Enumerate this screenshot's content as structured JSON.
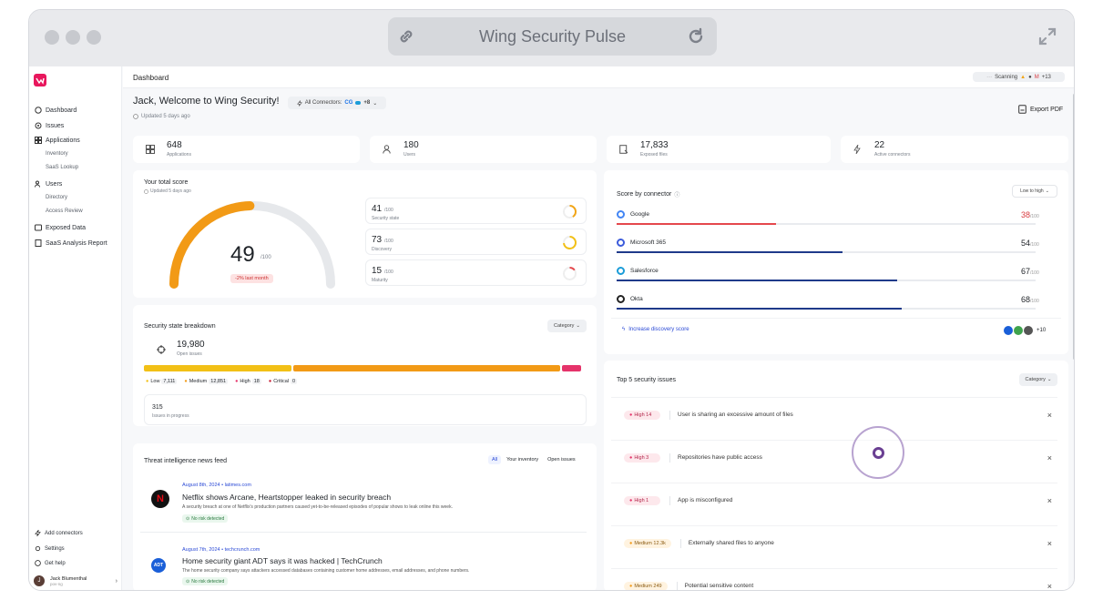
{
  "window": {
    "title": "Wing Security Pulse"
  },
  "sidebar": {
    "items": [
      {
        "label": "Dashboard",
        "icon": "home-icon"
      },
      {
        "label": "Issues",
        "icon": "issues-icon"
      },
      {
        "label": "Applications",
        "icon": "grid-icon"
      },
      {
        "label": "Inventory"
      },
      {
        "label": "SaaS Lookup"
      },
      {
        "label": "Users",
        "icon": "users-icon"
      },
      {
        "label": "Directory"
      },
      {
        "label": "Access Review"
      },
      {
        "label": "Exposed Data",
        "icon": "database-icon"
      },
      {
        "label": "SaaS Analysis Report",
        "icon": "report-icon"
      }
    ],
    "bottom": [
      "Add connectors",
      "Settings",
      "Get help"
    ],
    "user": {
      "initial": "J",
      "name": "Jack Blumenthal",
      "org": "pov-ng"
    }
  },
  "header": {
    "title": "Dashboard",
    "scanning": "Scanning",
    "scan_more": "+13"
  },
  "welcome": {
    "title": "Jack, Welcome to Wing Security!",
    "connectors_label": "All Connectors:",
    "connectors_more": "+8",
    "updated": "Updated 5 days ago",
    "export": "Export PDF"
  },
  "stats": [
    {
      "value": "648",
      "label": "Applications"
    },
    {
      "value": "180",
      "label": "Users"
    },
    {
      "value": "17,833",
      "label": "Exposed files"
    },
    {
      "value": "22",
      "label": "Active connectors"
    }
  ],
  "score": {
    "title": "Your total score",
    "updated": "Updated 5 days ago",
    "value": "49",
    "out_of": "/100",
    "fraction": 0.49,
    "delta": "-2% last month",
    "subs": [
      {
        "value": "41",
        "out_of": "/100",
        "label": "Security state",
        "fraction": 0.41,
        "color": "#f2a516"
      },
      {
        "value": "73",
        "out_of": "/100",
        "label": "Discovery",
        "fraction": 0.73,
        "color": "#f2c016"
      },
      {
        "value": "15",
        "out_of": "/100",
        "label": "Maturity",
        "fraction": 0.15,
        "color": "#e5484d"
      }
    ]
  },
  "breakdown": {
    "title": "Security state breakdown",
    "dropdown": "Category",
    "open_value": "19,980",
    "open_label": "Open issues",
    "legend": [
      {
        "label": "Low",
        "value": "7,111",
        "color": "#f2c016"
      },
      {
        "label": "Medium",
        "value": "12,851",
        "color": "#f29a16"
      },
      {
        "label": "High",
        "value": "18",
        "color": "#e5336a"
      },
      {
        "label": "Critical",
        "value": "0",
        "color": "#c5142c"
      }
    ],
    "in_progress_value": "315",
    "in_progress_label": "Issues in progress"
  },
  "news": {
    "title": "Threat intelligence news feed",
    "tabs": [
      "All",
      "Your inventory",
      "Open issues"
    ],
    "items": [
      {
        "meta": "August 8th, 2024 • latimes.com",
        "headline": "Netflix shows Arcane, Heartstopper leaked in security breach",
        "desc": "A security breach at one of Netflix's production partners caused yet-to-be-released episodes of popular shows to leak online this week.",
        "badge": "No risk detected"
      },
      {
        "meta": "August 7th, 2024 • techcrunch.com",
        "headline": "Home security giant ADT says it was hacked | TechCrunch",
        "desc": "The home security company says attackers accessed databases containing customer home addresses, email addresses, and phone numbers.",
        "badge": "No risk detected"
      }
    ]
  },
  "connectors": {
    "title": "Score by connector",
    "sort": "Low to high",
    "items": [
      {
        "name": "Google",
        "value": "38",
        "out_of": "/100",
        "fraction": 0.38,
        "color": "#e5484d",
        "value_color": "#d93a3f"
      },
      {
        "name": "Microsoft 365",
        "value": "54",
        "out_of": "/100",
        "fraction": 0.54,
        "color": "#1f3a8a",
        "value_color": "#1f2328"
      },
      {
        "name": "Salesforce",
        "value": "67",
        "out_of": "/100",
        "fraction": 0.67,
        "color": "#1f3a8a",
        "value_color": "#1f2328"
      },
      {
        "name": "Okta",
        "value": "68",
        "out_of": "/100",
        "fraction": 0.68,
        "color": "#1f3a8a",
        "value_color": "#1f2328"
      }
    ],
    "increase": "Increase discovery score",
    "more": "+10"
  },
  "issues": {
    "title": "Top 5 security issues",
    "dropdown": "Category",
    "items": [
      {
        "severity": "High",
        "count": "14",
        "text": "User is sharing an excessive amount of files"
      },
      {
        "severity": "High",
        "count": "3",
        "text": "Repositories have public access"
      },
      {
        "severity": "High",
        "count": "1",
        "text": "App is misconfigured"
      },
      {
        "severity": "Medium",
        "count": "12.3k",
        "text": "Externally shared files to anyone"
      },
      {
        "severity": "Medium",
        "count": "249",
        "text": "Potential sensitive content"
      }
    ]
  }
}
